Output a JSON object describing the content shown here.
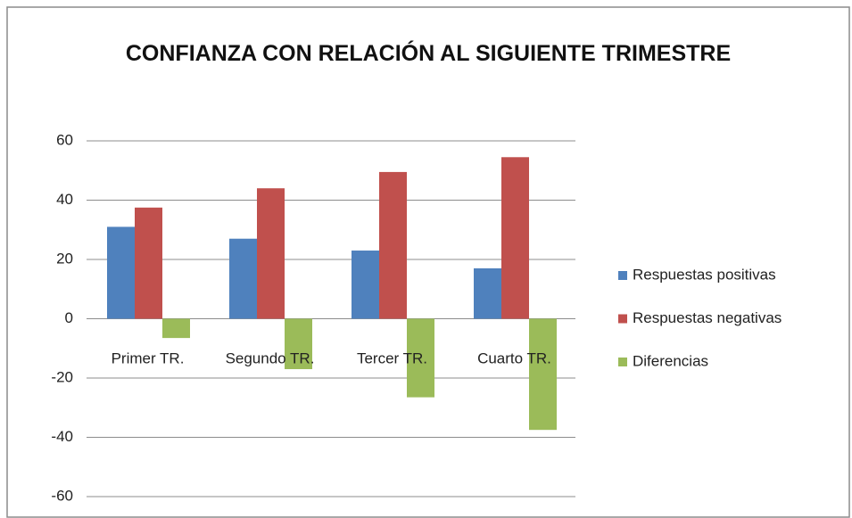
{
  "chart_data": {
    "type": "bar",
    "title": "CONFIANZA CON RELACIÓN AL SIGUIENTE TRIMESTRE",
    "categories": [
      "Primer TR.",
      "Segundo TR.",
      "Tercer TR.",
      "Cuarto TR."
    ],
    "series": [
      {
        "name": "Respuestas positivas",
        "color": "#4f81bd",
        "values": [
          31,
          27,
          23,
          17
        ]
      },
      {
        "name": "Respuestas negativas",
        "color": "#c0504d",
        "values": [
          37.5,
          44,
          49.5,
          54.5
        ]
      },
      {
        "name": "Diferencias",
        "color": "#9bbb59",
        "values": [
          -6.5,
          -17,
          -26.5,
          -37.5
        ]
      }
    ],
    "ylim": [
      -60,
      60
    ],
    "yticks": [
      60,
      40,
      20,
      0,
      -20,
      -40,
      -60
    ],
    "grid": true,
    "legend": "right"
  }
}
